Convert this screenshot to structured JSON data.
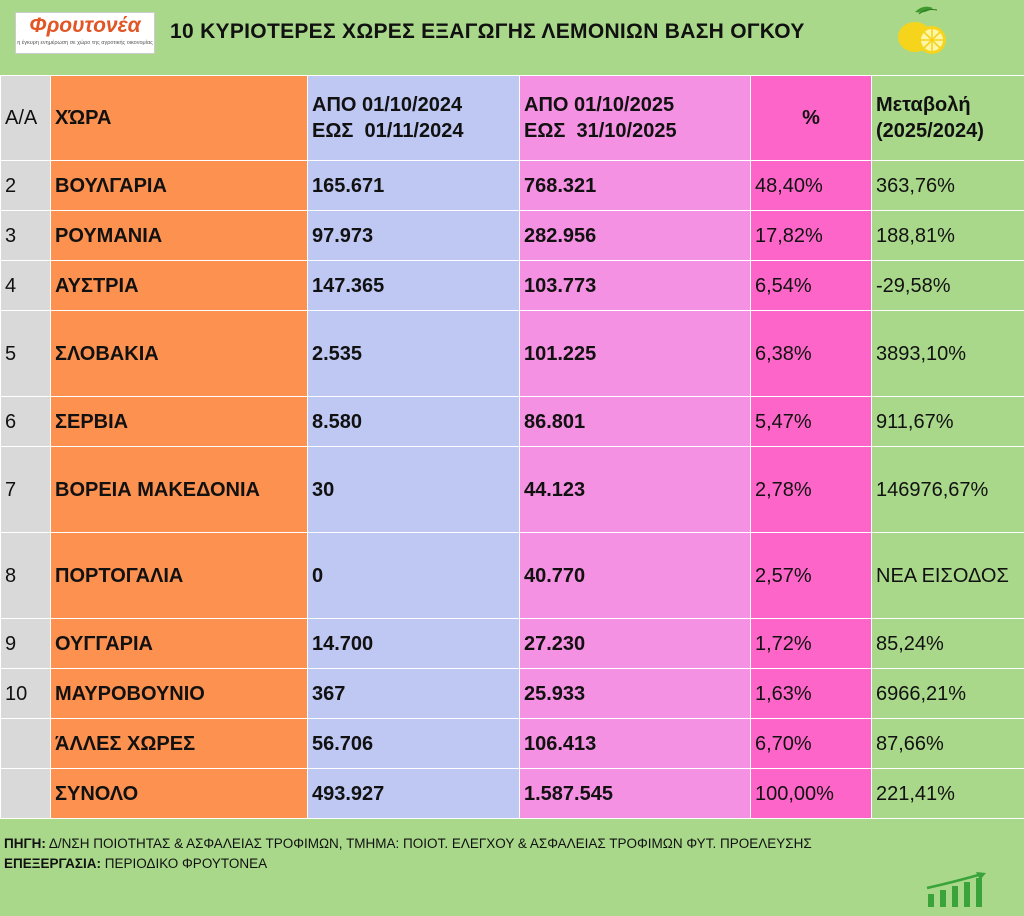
{
  "logo": {
    "name": "Φρουτονέα",
    "tagline": "η έγκυρη ενημέρωση σε χώρο της αγροτικής οικονομίας"
  },
  "title": "10 ΚΥΡΙΟΤΕΡΕΣ ΧΩΡΕΣ ΕΞΑΓΩΓΗΣ ΛΕΜΟΝΙΩΝ ΒΑΣΗ ΟΓΚΟΥ",
  "table": {
    "headers": {
      "aa": "Α/Α",
      "country": "ΧΏΡΑ",
      "p1_line1": "ΑΠΟ 01/10/2024",
      "p1_line2": "ΕΩΣ  01/11/2024",
      "p2_line1": "ΑΠΟ 01/10/2025",
      "p2_line2": "ΕΩΣ  31/10/2025",
      "pct": "%",
      "change_line1": "Μεταβολή",
      "change_line2": "(2025/2024)"
    },
    "rows": [
      {
        "aa": "2",
        "country": "ΒΟΥΛΓΑΡΙΑ",
        "p1": "165.671",
        "p2": "768.321",
        "pct": "48,40%",
        "change": "363,76%"
      },
      {
        "aa": "3",
        "country": "ΡΟΥΜΑΝΙΑ",
        "p1": "97.973",
        "p2": "282.956",
        "pct": "17,82%",
        "change": "188,81%"
      },
      {
        "aa": "4",
        "country": "ΑΥΣΤΡΙΑ",
        "p1": "147.365",
        "p2": "103.773",
        "pct": "6,54%",
        "change": "-29,58%"
      },
      {
        "aa": "5",
        "country": "ΣΛΟΒΑΚΙΑ",
        "p1": "2.535",
        "p2": "101.225",
        "pct": "6,38%",
        "change": "3893,10%"
      },
      {
        "aa": "6",
        "country": "ΣΕΡΒΙΑ",
        "p1": "8.580",
        "p2": "86.801",
        "pct": "5,47%",
        "change": "911,67%"
      },
      {
        "aa": "7",
        "country": "ΒΟΡΕΙΑ ΜΑΚΕΔΟΝΙΑ",
        "p1": "30",
        "p2": "44.123",
        "pct": "2,78%",
        "change": "146976,67%"
      },
      {
        "aa": "8",
        "country": "ΠΟΡΤΟΓΑΛΙΑ",
        "p1": "0",
        "p2": "40.770",
        "pct": "2,57%",
        "change": "ΝΕΑ ΕΙΣΟΔΟΣ"
      },
      {
        "aa": "9",
        "country": "ΟΥΓΓΑΡΙΑ",
        "p1": "14.700",
        "p2": "27.230",
        "pct": "1,72%",
        "change": "85,24%"
      },
      {
        "aa": "10",
        "country": "ΜΑΥΡΟΒΟΥΝΙΟ",
        "p1": "367",
        "p2": "25.933",
        "pct": "1,63%",
        "change": "6966,21%"
      },
      {
        "aa": "",
        "country": "ΆΛΛΕΣ ΧΩΡΕΣ",
        "p1": "56.706",
        "p2": "106.413",
        "pct": "6,70%",
        "change": "87,66%"
      },
      {
        "aa": "",
        "country": "ΣΥΝΟΛΟ",
        "p1": "493.927",
        "p2": "1.587.545",
        "pct": "100,00%",
        "change": "221,41%"
      }
    ]
  },
  "footer": {
    "source_label": "ΠΗΓΗ:",
    "source_text": " Δ/ΝΣΗ ΠΟΙΟΤΗΤΑΣ & ΑΣΦΑΛΕΙΑΣ ΤΡΟΦΙΜΩΝ, ΤΜΗΜΑ: ΠΟΙΟΤ. ΕΛΕΓΧΟΥ & ΑΣΦΑΛΕΙΑΣ ΤΡΟΦΙΜΩΝ ΦΥΤ. ΠΡΟΕΛΕΥΣΗΣ",
    "processing_label": "ΕΠΕΞΕΡΓΑΣΙΑ:",
    "processing_text": " ΠΕΡΙΟΔΙΚΟ ΦΡΟΥΤΟΝΕΑ"
  },
  "colors": {
    "background": "#a9d88a",
    "aa_column": "#d9d9d9",
    "country_column": "#fd9150",
    "period1_column": "#bec8f2",
    "period2_column": "#f591e2",
    "pct_column": "#fd65c9",
    "logo_text": "#e25525"
  },
  "icons": {
    "lemon": "lemon-icon",
    "growth": "growth-chart-icon"
  }
}
